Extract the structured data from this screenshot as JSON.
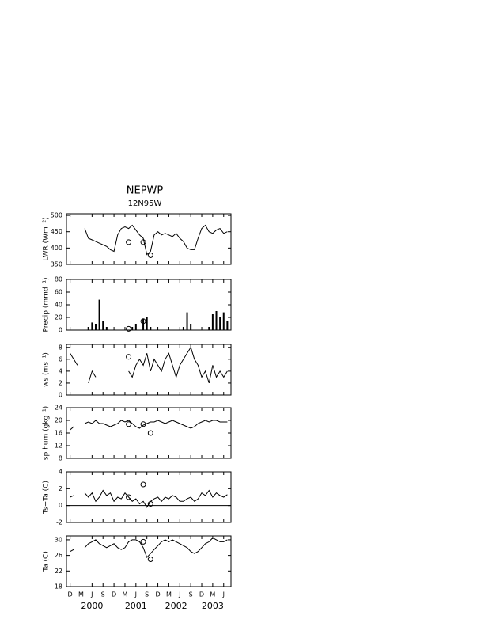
{
  "chart_data": [
    {
      "type": "line",
      "title": "NEPWP",
      "subtitle": "12N95W",
      "y_label": "LWR (Wm⁻²)",
      "color": "#000000",
      "x": [
        "1999-12",
        "2000-01",
        "2000-02",
        "2000-03",
        "2000-04",
        "2000-05",
        "2000-06",
        "2000-07",
        "2000-08",
        "2000-09",
        "2000-10",
        "2000-11",
        "2000-12",
        "2001-01",
        "2001-02",
        "2001-03",
        "2001-04",
        "2001-05",
        "2001-06",
        "2001-07",
        "2001-08",
        "2001-09",
        "2001-10",
        "2001-11",
        "2001-12",
        "2002-01",
        "2002-02",
        "2002-03",
        "2002-04",
        "2002-05",
        "2002-06",
        "2002-07",
        "2002-08",
        "2002-09",
        "2002-10",
        "2002-11",
        "2002-12",
        "2003-01",
        "2003-02",
        "2003-03",
        "2003-04",
        "2003-05",
        "2003-06",
        "2003-07"
      ],
      "values": [
        null,
        null,
        null,
        null,
        460,
        430,
        425,
        420,
        415,
        410,
        405,
        395,
        390,
        440,
        460,
        465,
        460,
        470,
        455,
        440,
        430,
        380,
        390,
        440,
        450,
        440,
        445,
        440,
        435,
        445,
        430,
        420,
        400,
        395,
        395,
        430,
        460,
        470,
        450,
        445,
        455,
        460,
        445,
        450
      ],
      "markers": {
        "x": [
          "2001-04",
          "2001-08",
          "2001-10"
        ],
        "values": [
          418,
          418,
          378
        ]
      },
      "xlim": [
        "1999-11",
        "2003-08"
      ],
      "ylim": [
        350,
        505
      ],
      "yticks": [
        350,
        400,
        450,
        500
      ]
    },
    {
      "type": "bar",
      "y_label": "Precip (mmd⁻¹)",
      "color": "#000000",
      "x": [
        "1999-12",
        "2000-01",
        "2000-02",
        "2000-03",
        "2000-04",
        "2000-05",
        "2000-06",
        "2000-07",
        "2000-08",
        "2000-09",
        "2000-10",
        "2000-11",
        "2000-12",
        "2001-01",
        "2001-02",
        "2001-03",
        "2001-04",
        "2001-05",
        "2001-06",
        "2001-07",
        "2001-08",
        "2001-09",
        "2001-10",
        "2001-11",
        "2001-12",
        "2002-01",
        "2002-02",
        "2002-03",
        "2002-04",
        "2002-05",
        "2002-06",
        "2002-07",
        "2002-08",
        "2002-09",
        "2002-10",
        "2002-11",
        "2002-12",
        "2003-01",
        "2003-02",
        "2003-03",
        "2003-04",
        "2003-05",
        "2003-06",
        "2003-07"
      ],
      "values": [
        0,
        0,
        0,
        0,
        0,
        5,
        12,
        10,
        48,
        15,
        5,
        0,
        0,
        0,
        0,
        0,
        0,
        5,
        10,
        0,
        18,
        20,
        5,
        0,
        0,
        0,
        0,
        0,
        0,
        0,
        0,
        5,
        28,
        10,
        0,
        0,
        0,
        0,
        5,
        25,
        30,
        20,
        28,
        15
      ],
      "markers": {
        "x": [
          "2001-04",
          "2001-08"
        ],
        "values": [
          2,
          14
        ]
      },
      "xlim": [
        "1999-11",
        "2003-08"
      ],
      "ylim": [
        0,
        80
      ],
      "yticks": [
        0,
        20,
        40,
        60,
        80
      ]
    },
    {
      "type": "line",
      "y_label": "ws (ms⁻¹)",
      "color": "#000000",
      "x": [
        "1999-12",
        "2000-01",
        "2000-02",
        "2000-03",
        "2000-04",
        "2000-05",
        "2000-06",
        "2000-07",
        "2000-08",
        "2000-09",
        "2000-10",
        "2000-11",
        "2000-12",
        "2001-01",
        "2001-02",
        "2001-03",
        "2001-04",
        "2001-05",
        "2001-06",
        "2001-07",
        "2001-08",
        "2001-09",
        "2001-10",
        "2001-11",
        "2001-12",
        "2002-01",
        "2002-02",
        "2002-03",
        "2002-04",
        "2002-05",
        "2002-06",
        "2002-07",
        "2002-08",
        "2002-09",
        "2002-10",
        "2002-11",
        "2002-12",
        "2003-01",
        "2003-02",
        "2003-03",
        "2003-04",
        "2003-05",
        "2003-06",
        "2003-07"
      ],
      "values": [
        7,
        6,
        5,
        null,
        null,
        2,
        4,
        3,
        null,
        null,
        null,
        null,
        null,
        null,
        null,
        null,
        4,
        3,
        5,
        6,
        5,
        7,
        4,
        6,
        5,
        4,
        6,
        7,
        5,
        3,
        5,
        6,
        7,
        8,
        6,
        5,
        3,
        4,
        2,
        5,
        3,
        4,
        3,
        4
      ],
      "markers": {
        "x": [
          "2001-04"
        ],
        "values": [
          6.4
        ]
      },
      "xlim": [
        "1999-11",
        "2003-08"
      ],
      "ylim": [
        0,
        8.5
      ],
      "yticks": [
        0,
        2,
        4,
        6,
        8
      ]
    },
    {
      "type": "line",
      "y_label": "sp hum (gkg⁻¹)",
      "color": "#000000",
      "x": [
        "1999-12",
        "2000-01",
        "2000-02",
        "2000-03",
        "2000-04",
        "2000-05",
        "2000-06",
        "2000-07",
        "2000-08",
        "2000-09",
        "2000-10",
        "2000-11",
        "2000-12",
        "2001-01",
        "2001-02",
        "2001-03",
        "2001-04",
        "2001-05",
        "2001-06",
        "2001-07",
        "2001-08",
        "2001-09",
        "2001-10",
        "2001-11",
        "2001-12",
        "2002-01",
        "2002-02",
        "2002-03",
        "2002-04",
        "2002-05",
        "2002-06",
        "2002-07",
        "2002-08",
        "2002-09",
        "2002-10",
        "2002-11",
        "2002-12",
        "2003-01",
        "2003-02",
        "2003-03",
        "2003-04",
        "2003-05",
        "2003-06",
        "2003-07"
      ],
      "values": [
        17,
        18,
        null,
        null,
        19,
        19.5,
        19,
        20,
        19,
        19,
        18.5,
        18,
        18.5,
        19,
        20,
        19.5,
        20,
        19,
        18,
        17.5,
        18.5,
        19,
        19.5,
        19.5,
        20,
        19.5,
        19,
        19.5,
        20,
        19.5,
        19,
        18.5,
        18,
        17.5,
        18,
        19,
        19.5,
        20,
        19.5,
        20,
        20,
        19.5,
        19.5,
        19.5
      ],
      "markers": {
        "x": [
          "2001-04",
          "2001-08",
          "2001-10"
        ],
        "values": [
          18.8,
          18.8,
          16
        ]
      },
      "xlim": [
        "1999-11",
        "2003-08"
      ],
      "ylim": [
        8,
        24
      ],
      "yticks": [
        8,
        12,
        16,
        20,
        24
      ]
    },
    {
      "type": "line",
      "y_label": "Ts−Ta (C)",
      "color": "#000000",
      "zero_line": true,
      "x": [
        "1999-12",
        "2000-01",
        "2000-02",
        "2000-03",
        "2000-04",
        "2000-05",
        "2000-06",
        "2000-07",
        "2000-08",
        "2000-09",
        "2000-10",
        "2000-11",
        "2000-12",
        "2001-01",
        "2001-02",
        "2001-03",
        "2001-04",
        "2001-05",
        "2001-06",
        "2001-07",
        "2001-08",
        "2001-09",
        "2001-10",
        "2001-11",
        "2001-12",
        "2002-01",
        "2002-02",
        "2002-03",
        "2002-04",
        "2002-05",
        "2002-06",
        "2002-07",
        "2002-08",
        "2002-09",
        "2002-10",
        "2002-11",
        "2002-12",
        "2003-01",
        "2003-02",
        "2003-03",
        "2003-04",
        "2003-05",
        "2003-06",
        "2003-07"
      ],
      "values": [
        1,
        1.2,
        null,
        null,
        1.5,
        1,
        1.5,
        0.5,
        1,
        1.8,
        1.2,
        1.5,
        0.5,
        1,
        0.8,
        1.5,
        1,
        0.5,
        0.8,
        0.2,
        0.5,
        -0.2,
        0.5,
        0.8,
        1,
        0.5,
        1,
        0.8,
        1.2,
        1,
        0.5,
        0.5,
        0.8,
        1,
        0.5,
        0.8,
        1.5,
        1.2,
        1.8,
        1,
        1.5,
        1.2,
        1,
        1.3
      ],
      "markers": {
        "x": [
          "2001-04",
          "2001-08",
          "2001-10"
        ],
        "values": [
          1,
          2.5,
          0.2
        ]
      },
      "xlim": [
        "1999-11",
        "2003-08"
      ],
      "ylim": [
        -2,
        4
      ],
      "yticks": [
        -2,
        0,
        2,
        4
      ]
    },
    {
      "type": "line",
      "y_label": "Ta (C)",
      "color": "#000000",
      "x": [
        "1999-12",
        "2000-01",
        "2000-02",
        "2000-03",
        "2000-04",
        "2000-05",
        "2000-06",
        "2000-07",
        "2000-08",
        "2000-09",
        "2000-10",
        "2000-11",
        "2000-12",
        "2001-01",
        "2001-02",
        "2001-03",
        "2001-04",
        "2001-05",
        "2001-06",
        "2001-07",
        "2001-08",
        "2001-09",
        "2001-10",
        "2001-11",
        "2001-12",
        "2002-01",
        "2002-02",
        "2002-03",
        "2002-04",
        "2002-05",
        "2002-06",
        "2002-07",
        "2002-08",
        "2002-09",
        "2002-10",
        "2002-11",
        "2002-12",
        "2003-01",
        "2003-02",
        "2003-03",
        "2003-04",
        "2003-05",
        "2003-06",
        "2003-07"
      ],
      "values": [
        27,
        27.5,
        null,
        null,
        28,
        29,
        29.5,
        30,
        29,
        28.5,
        28,
        28.5,
        29,
        28,
        27.5,
        28,
        29.5,
        30,
        30,
        29.5,
        28,
        25.5,
        26.5,
        27.5,
        28.5,
        29.5,
        30,
        29.5,
        30,
        29.5,
        29,
        28.5,
        28,
        27,
        26.5,
        27,
        28,
        29,
        29.5,
        30.5,
        30,
        29.5,
        29.5,
        30
      ],
      "markers": {
        "x": [
          "2001-08",
          "2001-10"
        ],
        "values": [
          29.5,
          25
        ]
      },
      "xlim": [
        "1999-11",
        "2003-08"
      ],
      "ylim": [
        18,
        31
      ],
      "yticks": [
        18,
        22,
        26,
        30
      ],
      "xticks": [
        {
          "value": "1999-12",
          "label": "D"
        },
        {
          "value": "2000-03",
          "label": "M"
        },
        {
          "value": "2000-06",
          "label": "J"
        },
        {
          "value": "2000-09",
          "label": "S"
        },
        {
          "value": "2000-12",
          "label": "D"
        },
        {
          "value": "2001-03",
          "label": "M"
        },
        {
          "value": "2001-06",
          "label": "J"
        },
        {
          "value": "2001-09",
          "label": "S"
        },
        {
          "value": "2001-12",
          "label": "D"
        },
        {
          "value": "2002-03",
          "label": "M"
        },
        {
          "value": "2002-06",
          "label": "J"
        },
        {
          "value": "2002-09",
          "label": "S"
        },
        {
          "value": "2002-12",
          "label": "D"
        },
        {
          "value": "2003-03",
          "label": "M"
        },
        {
          "value": "2003-06",
          "label": "J"
        }
      ],
      "year_labels": [
        {
          "value": "2000-06",
          "label": "2000"
        },
        {
          "value": "2001-06",
          "label": "2001"
        },
        {
          "value": "2002-05",
          "label": "2002"
        },
        {
          "value": "2003-03",
          "label": "2003"
        }
      ]
    }
  ]
}
